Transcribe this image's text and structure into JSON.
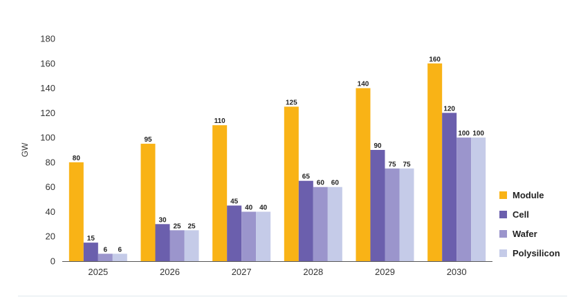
{
  "chart_data": {
    "type": "bar",
    "ylabel": "GW",
    "ylim": [
      0,
      180
    ],
    "yticks": [
      0,
      20,
      40,
      60,
      80,
      100,
      120,
      140,
      160,
      180
    ],
    "categories": [
      "2025",
      "2026",
      "2027",
      "2028",
      "2029",
      "2030"
    ],
    "series": [
      {
        "name": "Module",
        "color": "#f9b316",
        "values": [
          80,
          95,
          110,
          125,
          140,
          160
        ]
      },
      {
        "name": "Cell",
        "color": "#6b5fad",
        "values": [
          15,
          30,
          45,
          65,
          90,
          120
        ]
      },
      {
        "name": "Wafer",
        "color": "#9b95cc",
        "values": [
          6,
          25,
          40,
          60,
          75,
          100
        ]
      },
      {
        "name": "Polysilicon",
        "color": "#c5cbe8",
        "values": [
          6,
          25,
          40,
          60,
          75,
          100
        ]
      }
    ],
    "grid": false,
    "legend_position": "right"
  }
}
